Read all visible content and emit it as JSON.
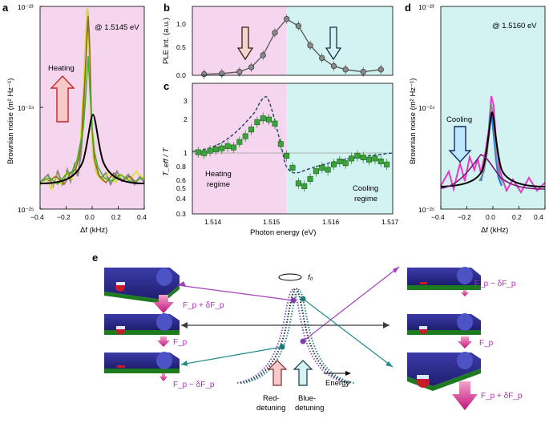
{
  "panels": {
    "a": {
      "label": "a",
      "annotation": "@ 1.5145 eV",
      "arrow_label": "Heating",
      "ylabel": "Brownian noise (m² Hz⁻¹)",
      "xlabel": "Δf (kHz)",
      "xticks": [
        "−0.4",
        "−0.2",
        "0.0",
        "0.2",
        "0.4"
      ],
      "yticks": [
        "10⁻²³",
        "10⁻²⁴",
        "10⁻²⁵"
      ]
    },
    "b": {
      "label": "b",
      "ylabel": "PLE int. (a.u.)",
      "yticks": [
        "0.0",
        "0.5",
        "1.0"
      ]
    },
    "c": {
      "label": "c",
      "ylabel": "T_eff / T",
      "xlabel": "Photon energy (eV)",
      "xticks": [
        "1.514",
        "1.515",
        "1.516",
        "1.517"
      ],
      "yticks": [
        "3",
        "2",
        "1",
        "0.8",
        "0.6",
        "0.5",
        "0.4",
        "0.3"
      ],
      "heating_text": [
        "Heating",
        "regime"
      ],
      "cooling_text": [
        "Cooling",
        "regime"
      ]
    },
    "d": {
      "label": "d",
      "annotation": "@ 1.5160 eV",
      "arrow_label": "Cooling",
      "ylabel": "Brownian noise (m² Hz⁻¹)",
      "xlabel": "Δf (kHz)",
      "xticks": [
        "−0.4",
        "−0.2",
        "0.0",
        "0.2",
        "0.4"
      ],
      "yticks": [
        "10⁻²³",
        "10⁻²⁴",
        "10⁻²⁵"
      ]
    },
    "e": {
      "label": "e",
      "f0": "f₀",
      "energy": "Energy",
      "red": [
        "Red-",
        "detuning"
      ],
      "blue": [
        "Blue-",
        "detuning"
      ],
      "left_forces": [
        "F_p + δF_p",
        "F_p",
        "F_p − δF_p"
      ],
      "right_forces": [
        "F_p − δF_p",
        "F_p",
        "F_p + δF_p"
      ]
    }
  },
  "chart_data": [
    {
      "panel": "b",
      "type": "scatter",
      "xlabel": "Photon energy (eV)",
      "ylabel": "PLE int. (a.u.)",
      "xlim": [
        1.5136,
        1.517
      ],
      "ylim": [
        0,
        1.2
      ],
      "x": [
        1.5138,
        1.5141,
        1.5144,
        1.5146,
        1.5148,
        1.515,
        1.5152,
        1.5154,
        1.5156,
        1.5158,
        1.516,
        1.5162,
        1.5165,
        1.5168
      ],
      "values": [
        0.02,
        0.03,
        0.06,
        0.14,
        0.35,
        0.74,
        0.98,
        0.86,
        0.52,
        0.3,
        0.16,
        0.1,
        0.06,
        0.1
      ]
    },
    {
      "panel": "c",
      "type": "scatter",
      "xlabel": "Photon energy (eV)",
      "ylabel": "T_eff / T",
      "xlim": [
        1.5136,
        1.517
      ],
      "ylim": [
        0.3,
        4
      ],
      "x": [
        1.5137,
        1.5138,
        1.5139,
        1.514,
        1.5141,
        1.5142,
        1.5143,
        1.5144,
        1.5145,
        1.5146,
        1.5147,
        1.5148,
        1.5149,
        1.515,
        1.5151,
        1.5152,
        1.5153,
        1.5154,
        1.5155,
        1.5156,
        1.5157,
        1.5158,
        1.5159,
        1.516,
        1.5161,
        1.5162,
        1.5163,
        1.5164,
        1.5165,
        1.5166,
        1.5167,
        1.5168,
        1.5169
      ],
      "values": [
        1.02,
        1.0,
        1.05,
        1.08,
        1.1,
        1.15,
        1.12,
        1.25,
        1.4,
        1.6,
        1.85,
        2.0,
        1.95,
        1.8,
        1.2,
        0.95,
        0.75,
        0.55,
        0.52,
        0.6,
        0.7,
        0.75,
        0.72,
        0.8,
        0.85,
        0.82,
        0.9,
        0.95,
        0.92,
        0.88,
        0.9,
        0.85,
        0.8
      ]
    }
  ]
}
